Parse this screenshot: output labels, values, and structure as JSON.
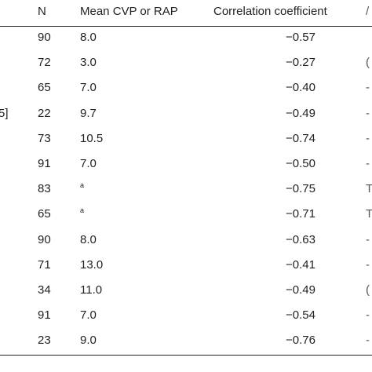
{
  "table": {
    "headers": {
      "n": "N",
      "mean": "Mean CVP or RAP",
      "corr": "Correlation coefficient",
      "edge": "/"
    },
    "rows": [
      {
        "left": "",
        "n": "90",
        "mean": "8.0",
        "corr": "−0.57",
        "edge": ""
      },
      {
        "left": "",
        "n": "72",
        "mean": "3.0",
        "corr": "−0.27",
        "edge": "("
      },
      {
        "left": "",
        "n": "65",
        "mean": "7.0",
        "corr": "−0.40",
        "edge": "-"
      },
      {
        "left": "5]",
        "n": "22",
        "mean": "9.7",
        "corr": "−0.49",
        "edge": "-"
      },
      {
        "left": "",
        "n": "73",
        "mean": "10.5",
        "corr": "−0.74",
        "edge": "-"
      },
      {
        "left": "",
        "n": "91",
        "mean": "7.0",
        "corr": "−0.50",
        "edge": "-"
      },
      {
        "left": "",
        "n": "83",
        "mean": "a",
        "corr": "−0.75",
        "edge": "T"
      },
      {
        "left": "",
        "n": "65",
        "mean": "a",
        "corr": "−0.71",
        "edge": "T"
      },
      {
        "left": "",
        "n": "90",
        "mean": "8.0",
        "corr": "−0.63",
        "edge": "-"
      },
      {
        "left": "",
        "n": "71",
        "mean": "13.0",
        "corr": "−0.41",
        "edge": "-"
      },
      {
        "left": "",
        "n": "34",
        "mean": "11.0",
        "corr": "−0.49",
        "edge": "("
      },
      {
        "left": "",
        "n": "91",
        "mean": "7.0",
        "corr": "−0.54",
        "edge": "-"
      },
      {
        "left": "",
        "n": "23",
        "mean": "9.0",
        "corr": "−0.76",
        "edge": "-"
      }
    ]
  }
}
